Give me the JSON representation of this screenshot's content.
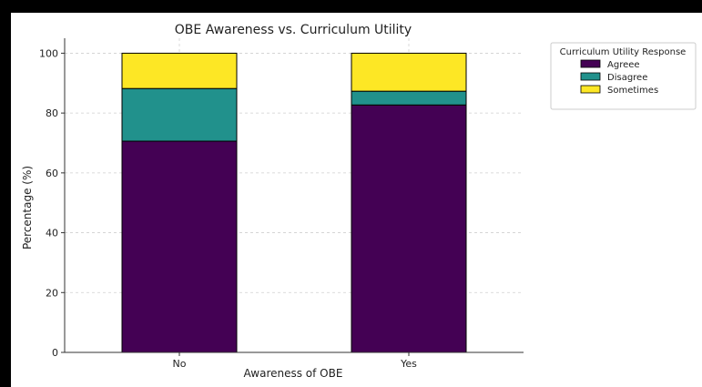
{
  "chart_data": {
    "type": "bar",
    "stacked": true,
    "title": "OBE Awareness vs. Curriculum Utility",
    "xlabel": "Awareness of OBE",
    "ylabel": "Percentage (%)",
    "categories": [
      "No",
      "Yes"
    ],
    "series": [
      {
        "name": "Agreee",
        "values": [
          70.6,
          82.7
        ],
        "color": "#440154"
      },
      {
        "name": "Disagree",
        "values": [
          17.6,
          4.6
        ],
        "color": "#21918c"
      },
      {
        "name": "Sometimes",
        "values": [
          11.8,
          12.7
        ],
        "color": "#fde725"
      }
    ],
    "ylim": [
      0,
      105
    ],
    "yticks": [
      0,
      20,
      40,
      60,
      80,
      100
    ],
    "grid": true,
    "legend": {
      "title": "Curriculum Utility Response",
      "placement": "upper-right-outside"
    }
  }
}
